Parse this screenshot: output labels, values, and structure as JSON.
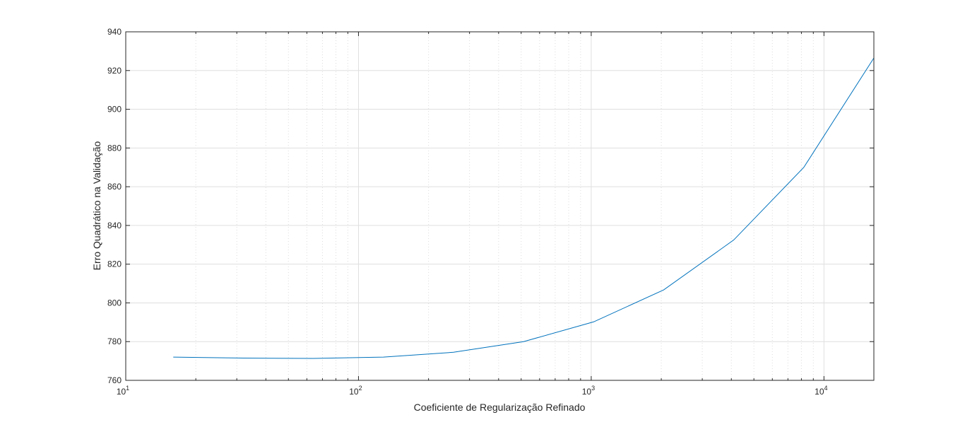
{
  "chart_data": {
    "type": "line",
    "x_scale": "log",
    "xlabel": "Coeficiente de Regularização Refinado",
    "ylabel": "Erro Quadrático na Validação",
    "xlim": [
      10,
      16384
    ],
    "ylim": [
      760,
      940
    ],
    "x_ticks": [
      {
        "base": "10",
        "exp": "1"
      },
      {
        "base": "10",
        "exp": "2"
      },
      {
        "base": "10",
        "exp": "3"
      },
      {
        "base": "10",
        "exp": "4"
      }
    ],
    "y_ticks": [
      "760",
      "780",
      "800",
      "820",
      "840",
      "860",
      "880",
      "900",
      "920",
      "940"
    ],
    "grid": true,
    "series": [
      {
        "color": "#0072bd",
        "x": [
          16,
          32,
          64,
          128,
          256,
          512,
          1024,
          2048,
          4096,
          8192,
          16384
        ],
        "y": [
          772.0,
          771.5,
          771.3,
          772.0,
          774.5,
          780.0,
          790.2,
          806.7,
          832.5,
          870.0,
          926.5
        ]
      }
    ]
  }
}
